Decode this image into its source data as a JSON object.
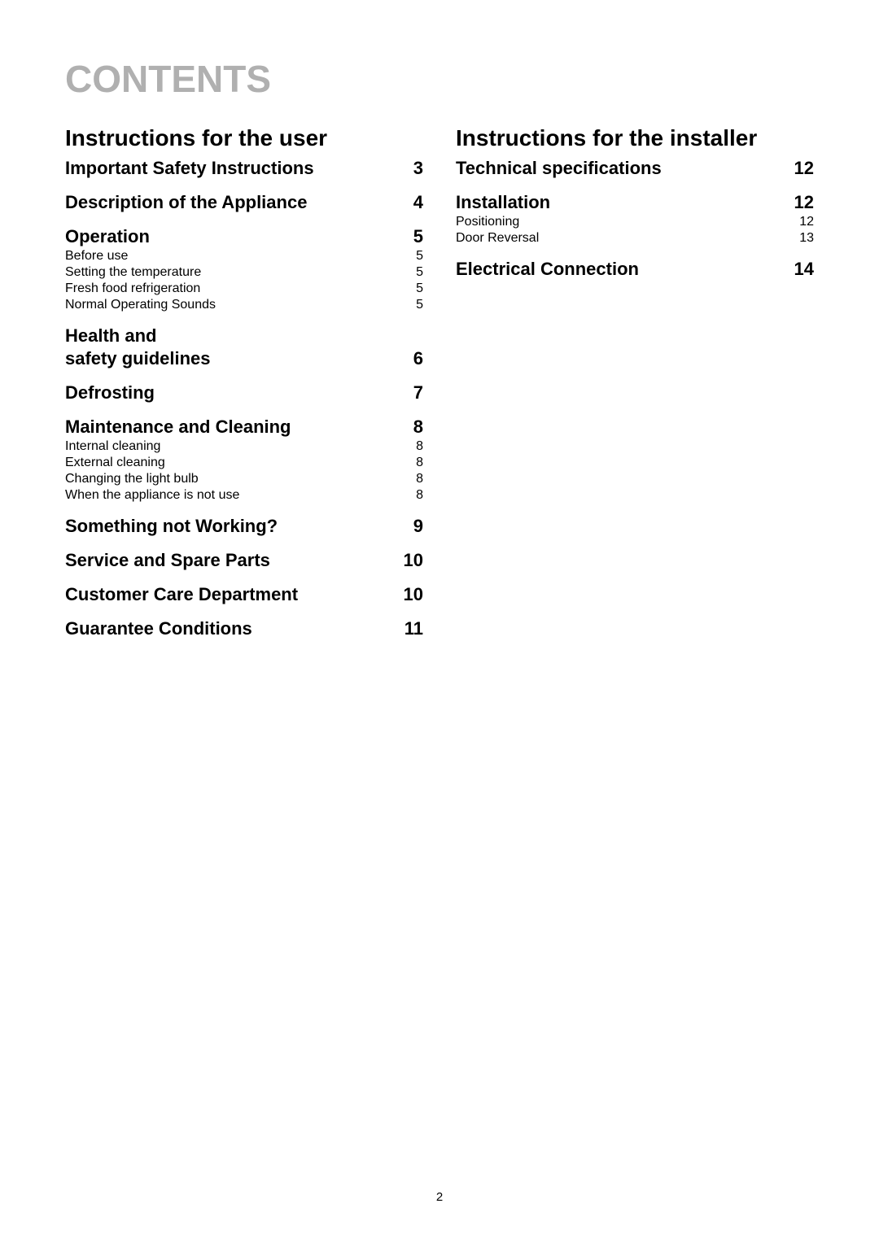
{
  "title": "CONTENTS",
  "footer_page": "2",
  "left": {
    "heading": "Instructions for the user",
    "sections": [
      {
        "type": "h2",
        "label": "Important Safety Instructions",
        "page": "3"
      },
      {
        "type": "h2",
        "label": "Description of the Appliance",
        "page": "4"
      },
      {
        "type": "h2",
        "label": "Operation",
        "page": "5"
      },
      {
        "type": "sub",
        "label": "Before use",
        "page": "5"
      },
      {
        "type": "sub",
        "label": "Setting the temperature",
        "page": "5"
      },
      {
        "type": "sub",
        "label": "Fresh food refrigeration",
        "page": "5"
      },
      {
        "type": "sub",
        "label": "Normal Operating Sounds",
        "page": "5"
      },
      {
        "type": "h2-2line-a",
        "label": "Health and",
        "page": ""
      },
      {
        "type": "h2",
        "label": "safety guidelines",
        "page": "6"
      },
      {
        "type": "h2",
        "label": "Defrosting",
        "page": "7"
      },
      {
        "type": "h2",
        "label": "Maintenance and Cleaning",
        "page": "8"
      },
      {
        "type": "sub",
        "label": "Internal cleaning",
        "page": "8"
      },
      {
        "type": "sub",
        "label": "External cleaning",
        "page": "8"
      },
      {
        "type": "sub",
        "label": "Changing the light bulb",
        "page": "8"
      },
      {
        "type": "sub",
        "label": "When the appliance is not use",
        "page": "8"
      },
      {
        "type": "h2",
        "label": "Something not Working?",
        "page": "9"
      },
      {
        "type": "h2",
        "label": "Service and Spare Parts",
        "page": "10"
      },
      {
        "type": "h2",
        "label": "Customer Care Department",
        "page": "10"
      },
      {
        "type": "h2",
        "label": "Guarantee Conditions",
        "page": "11"
      }
    ]
  },
  "right": {
    "heading": "Instructions for the installer",
    "sections": [
      {
        "type": "h2",
        "label": "Technical specifications",
        "page": "12"
      },
      {
        "type": "h2",
        "label": "Installation",
        "page": "12"
      },
      {
        "type": "sub",
        "label": "Positioning",
        "page": "12"
      },
      {
        "type": "sub",
        "label": "Door Reversal",
        "page": "13"
      },
      {
        "type": "h2",
        "label": "Electrical Connection",
        "page": "14"
      }
    ]
  }
}
